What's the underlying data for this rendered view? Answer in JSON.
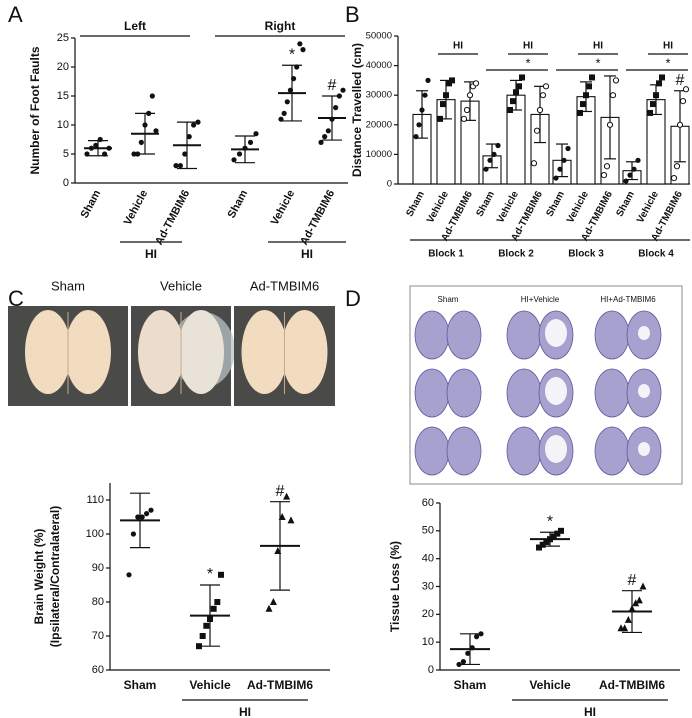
{
  "panel_labels": [
    "A",
    "B",
    "C",
    "D"
  ],
  "chart_data": [
    {
      "type": "dot_plot",
      "ylabel": "Number of Foot Faults",
      "section_labels": [
        "Left",
        "Right"
      ],
      "categories": [
        "Sham",
        "Vehicle",
        "Ad-TMBIM6",
        "Sham",
        "Vehicle",
        "Ad-TMBIM6"
      ],
      "group_label": "HI",
      "means": [
        6,
        8.5,
        6.5,
        5.8,
        15.5,
        11.2
      ],
      "sd": [
        1.3,
        3.5,
        4,
        2.3,
        4.8,
        3.8
      ],
      "points": [
        [
          5,
          6,
          6.5,
          7.5,
          5,
          6
        ],
        [
          5,
          5,
          7,
          10,
          12,
          15,
          9
        ],
        [
          3,
          3,
          5,
          8,
          10,
          10.5
        ],
        [
          4,
          5,
          6,
          7,
          8.5
        ],
        [
          11,
          12,
          14,
          16,
          18,
          20,
          24,
          23
        ],
        [
          7,
          8,
          9,
          11,
          13,
          15,
          16
        ]
      ],
      "markers": [
        null,
        null,
        null,
        null,
        "*",
        "#"
      ],
      "ylim": [
        0,
        25
      ],
      "yticks": [
        0,
        5,
        10,
        15,
        20,
        25
      ]
    },
    {
      "type": "bar",
      "ylabel": "Distance Travelled (cm)",
      "categories": [
        "Sham",
        "Vehicle",
        "Ad-TMBIM6",
        "Sham",
        "Vehicle",
        "Ad-TMBIM6",
        "Sham",
        "Vehicle",
        "Ad-TMBIM6",
        "Sham",
        "Vehicle",
        "Ad-TMBIM6"
      ],
      "blocks": [
        "Block 1",
        "Block 2",
        "Block 3",
        "Block 4"
      ],
      "bracket_label": "HI",
      "block_markers": [
        null,
        "*",
        "*",
        "*"
      ],
      "means": [
        23500,
        28500,
        28000,
        9500,
        30000,
        23500,
        8000,
        29500,
        22500,
        4500,
        28500,
        19500
      ],
      "sd": [
        8000,
        6500,
        6500,
        4000,
        5000,
        9500,
        5500,
        5000,
        14000,
        3000,
        5000,
        12000
      ],
      "points": [
        [
          16000,
          20000,
          25000,
          30000,
          35000
        ],
        [
          22000,
          27000,
          30000,
          34000,
          35000
        ],
        [
          22000,
          25000,
          30000,
          33000,
          34000
        ],
        [
          5000,
          8000,
          10000,
          13000
        ],
        [
          25000,
          28000,
          31000,
          33000,
          36000
        ],
        [
          7000,
          18000,
          25000,
          30000,
          33000
        ],
        [
          2000,
          5000,
          8000,
          12000
        ],
        [
          24000,
          27000,
          30000,
          33000,
          36000
        ],
        [
          3000,
          6000,
          20000,
          30000,
          35000
        ],
        [
          1000,
          3000,
          5000,
          8000
        ],
        [
          24000,
          27000,
          30000,
          34000,
          36000
        ],
        [
          2000,
          6000,
          20000,
          28000,
          32000
        ]
      ],
      "markers": [
        null,
        null,
        null,
        null,
        null,
        null,
        null,
        null,
        null,
        null,
        null,
        "#"
      ],
      "ylim": [
        0,
        50000
      ],
      "yticks": [
        0,
        10000,
        20000,
        30000,
        40000,
        50000
      ]
    },
    {
      "type": "dot_plot",
      "ylabel": [
        "Brain Weight (%)",
        "(Ipsilateral/Contralateral)"
      ],
      "categories": [
        "Sham",
        "Vehicle",
        "Ad-TMBIM6"
      ],
      "group_label": "HI",
      "means": [
        104,
        76,
        96.5
      ],
      "sd": [
        8,
        9,
        13
      ],
      "points": [
        [
          88,
          100,
          105,
          105,
          106,
          107
        ],
        [
          67,
          70,
          73,
          75,
          78,
          80,
          88
        ],
        [
          78,
          80,
          95,
          105,
          111,
          104
        ]
      ],
      "markers": [
        null,
        "*",
        "#"
      ],
      "ylim": [
        60,
        115
      ],
      "yticks": [
        60,
        70,
        80,
        90,
        100,
        110
      ]
    },
    {
      "type": "dot_plot",
      "ylabel": "Tissue Loss (%)",
      "categories": [
        "Sham",
        "Vehicle",
        "Ad-TMBIM6"
      ],
      "group_label": "HI",
      "means": [
        7.5,
        47,
        21
      ],
      "sd": [
        5.5,
        2.5,
        7.5
      ],
      "points": [
        [
          2,
          3,
          6,
          8,
          12,
          13
        ],
        [
          44,
          45,
          46,
          47,
          48,
          49,
          50
        ],
        [
          15,
          15,
          18,
          22,
          24,
          25,
          30
        ]
      ],
      "markers": [
        null,
        "*",
        "#"
      ],
      "ylim": [
        0,
        60
      ],
      "yticks": [
        0,
        10,
        20,
        30,
        40,
        50,
        60
      ]
    }
  ],
  "photos_c": [
    "Sham",
    "Vehicle",
    "Ad-TMBIM6"
  ],
  "photos_d": [
    "Sham",
    "HI+Vehicle",
    "HI+Ad-TMBIM6"
  ]
}
